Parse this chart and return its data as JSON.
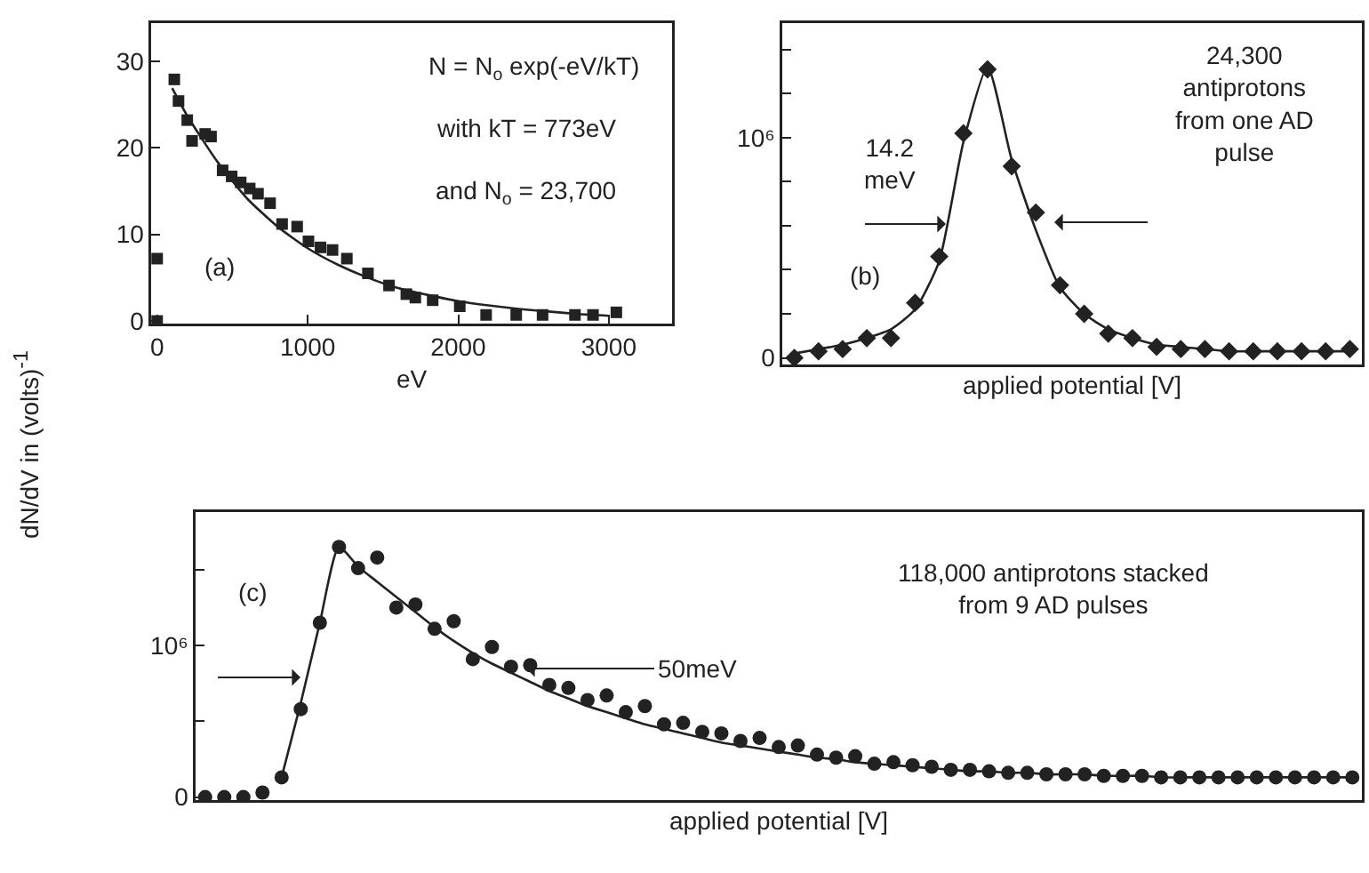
{
  "chart_data": [
    {
      "type": "scatter",
      "xlabel": "eV",
      "ylabel": "dN/dV in (volts)$^{-1}$",
      "annotations": [
        "N = N$_{o}$ exp(-eV/kT)",
        "with kT = 773eV",
        "and N$_{o}$ = 23,700",
        "(a)"
      ],
      "x": [
        0,
        0,
        114,
        142,
        200,
        232,
        319,
        358,
        435,
        495,
        555,
        615,
        670,
        750,
        830,
        930,
        1005,
        1085,
        1165,
        1260,
        1400,
        1540,
        1655,
        1715,
        1830,
        2010,
        2185,
        2385,
        2560,
        2775,
        2895,
        3050
      ],
      "xlim": [
        -40,
        3420
      ],
      "xticks": [
        0,
        1000,
        2000,
        3000
      ],
      "ylim": [
        -0.3,
        34.4
      ],
      "yticks": [
        0,
        10,
        20,
        30
      ],
      "series": [
        {
          "type": "scatter",
          "marker": "square",
          "color": "#222222",
          "values": [
            0,
            7.2,
            27.9,
            25.4,
            23.2,
            20.8,
            21.6,
            21.3,
            17.4,
            16.7,
            16,
            15.3,
            14.7,
            13.6,
            11.2,
            10.9,
            9.2,
            8.5,
            8.2,
            7.2,
            5.5,
            4.1,
            3.1,
            2.7,
            2.4,
            1.7,
            0.7,
            0.7,
            0.7,
            0.7,
            0.7,
            1.0
          ]
        },
        {
          "type": "line",
          "marker": "none",
          "color": "#222222",
          "x": [
            100,
            200,
            400,
            600,
            800,
            1000,
            1200,
            1400,
            1600,
            1800,
            2000,
            2200,
            2400,
            2600,
            2800,
            3000
          ],
          "values": [
            26.9,
            23.7,
            18.4,
            14.1,
            10.9,
            8.4,
            6.5,
            5.0,
            3.8,
            3.0,
            2.3,
            1.8,
            1.4,
            1.1,
            0.8,
            0.6
          ]
        }
      ]
    },
    {
      "type": "scatter",
      "xlabel": "applied potential [V]",
      "annotations": [
        "24,300 antiprotons from one AD pulse",
        "14.2 meV",
        "(b)"
      ],
      "tick_labels": "y",
      "categories": [
        null,
        null,
        null,
        null,
        null,
        null,
        null,
        null,
        null,
        null,
        null,
        null,
        null,
        null,
        null,
        null,
        null,
        null,
        null,
        null,
        null,
        null,
        null,
        null
      ],
      "ylim": [
        -30000,
        1520000
      ],
      "yticks": [
        0,
        {
          "value": 200000,
          "label": null
        },
        {
          "value": 400000,
          "label": null
        },
        {
          "value": 600000,
          "label": null
        },
        {
          "value": 800000,
          "label": null
        },
        {
          "value": 1000000,
          "label": "10⁶"
        },
        {
          "value": 1200000,
          "label": null
        },
        {
          "value": 1400000,
          "label": null
        }
      ],
      "series": [
        {
          "type": "scatter",
          "marker": "diamond",
          "color": "#222222",
          "values": [
            0,
            30000,
            40000,
            90000,
            90000,
            250000,
            460000,
            1020000,
            1310000,
            870000,
            660000,
            330000,
            200000,
            110000,
            90000,
            50000,
            40000,
            40000,
            30000,
            30000,
            30000,
            30000,
            30000,
            40000
          ]
        },
        {
          "type": "line",
          "marker": "none",
          "color": "#222222",
          "values": [
            20000,
            40000,
            60000,
            90000,
            130000,
            220000,
            440000,
            980000,
            1320000,
            900000,
            580000,
            320000,
            200000,
            130000,
            90000,
            60000,
            50000,
            40000,
            30000,
            30000,
            30000,
            30000,
            30000,
            30000
          ]
        }
      ]
    },
    {
      "type": "scatter",
      "xlabel": "applied potential [V]",
      "annotations": [
        "(c)",
        "118,000 antiprotons stacked from 9 AD pulses",
        "50meV"
      ],
      "tick_labels": "y",
      "categories": [
        null,
        null,
        null,
        null,
        null,
        null,
        null,
        null,
        null,
        null,
        null,
        null,
        null,
        null,
        null,
        null,
        null,
        null,
        null,
        null,
        null,
        null,
        null,
        null,
        null,
        null,
        null,
        null,
        null,
        null,
        null,
        null,
        null,
        null,
        null,
        null,
        null,
        null,
        null,
        null,
        null,
        null,
        null,
        null,
        null,
        null,
        null,
        null,
        null,
        null,
        null,
        null,
        null,
        null,
        null,
        null,
        null,
        null,
        null,
        null,
        null
      ],
      "ylim": [
        -20000,
        1880000
      ],
      "yticks": [
        0,
        {
          "value": 500000,
          "label": null
        },
        {
          "value": 1000000,
          "label": "10⁶"
        },
        {
          "value": 1500000,
          "label": null
        }
      ],
      "series": [
        {
          "type": "scatter",
          "marker": "circle",
          "color": "#222222",
          "values": [
            0,
            0,
            0,
            30000,
            130000,
            580000,
            1150000,
            1650000,
            1510000,
            1580000,
            1250000,
            1270000,
            1110000,
            1160000,
            910000,
            990000,
            860000,
            870000,
            740000,
            720000,
            640000,
            670000,
            560000,
            600000,
            480000,
            490000,
            430000,
            420000,
            370000,
            390000,
            330000,
            340000,
            280000,
            260000,
            270000,
            220000,
            230000,
            210000,
            200000,
            180000,
            180000,
            170000,
            160000,
            160000,
            150000,
            150000,
            150000,
            140000,
            140000,
            140000,
            130000,
            130000,
            130000,
            130000,
            130000,
            130000,
            130000,
            130000,
            130000,
            130000,
            130000
          ]
        },
        {
          "type": "line",
          "marker": "none",
          "color": "#222222",
          "values": [
            null,
            null,
            null,
            null,
            130000,
            620000,
            1150000,
            1650000,
            1520000,
            1420000,
            1320000,
            1220000,
            1120000,
            1030000,
            950000,
            880000,
            820000,
            760000,
            700000,
            650000,
            600000,
            560000,
            520000,
            480000,
            450000,
            420000,
            390000,
            360000,
            340000,
            320000,
            300000,
            280000,
            260000,
            250000,
            230000,
            220000,
            210000,
            200000,
            190000,
            180000,
            170000,
            170000,
            160000,
            160000,
            150000,
            150000,
            150000,
            140000,
            140000,
            140000,
            130000,
            130000,
            130000,
            130000,
            130000,
            130000,
            130000,
            130000,
            130000,
            130000,
            130000
          ]
        }
      ]
    }
  ]
}
